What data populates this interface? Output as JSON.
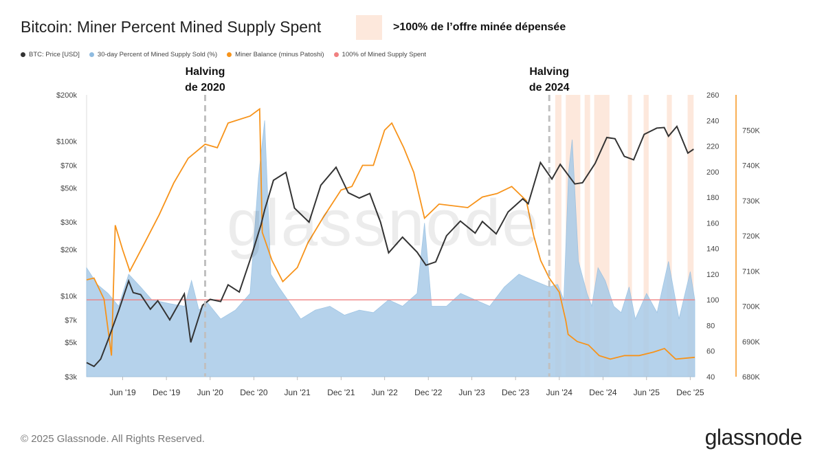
{
  "title": "Bitcoin: Miner Percent Mined Supply Spent",
  "shade_legend": {
    "label": ">100% de l’offre minée dépensée",
    "color": "#fde8dc"
  },
  "legend": [
    {
      "name": "BTC: Price [USD]",
      "color": "#333333"
    },
    {
      "name": "30-day Percent of Mined Supply Sold (%)",
      "color": "#8fbbe0"
    },
    {
      "name": "Miner Balance (minus Patoshi)",
      "color": "#f7931a"
    },
    {
      "name": "100% of Mined Supply Spent",
      "color": "#f08080"
    }
  ],
  "footer": "© 2025 Glassnode. All Rights Reserved.",
  "brand": "glassnode",
  "watermark": "glassnode",
  "colors": {
    "price": "#333333",
    "percent_fill": "#a9cbe8",
    "balance": "#f7931a",
    "threshold": "#f08080",
    "shade": "#fde8dc",
    "halving": "#c0c0c0"
  },
  "chart_data": {
    "type": "line",
    "title": "Bitcoin: Miner Percent Mined Supply Spent",
    "x_range": [
      "2019-01-01",
      "2025-12-20"
    ],
    "x_ticks": [
      {
        "date": "2019-06-01",
        "label": "Jun '19"
      },
      {
        "date": "2019-12-01",
        "label": "Dec '19"
      },
      {
        "date": "2020-06-01",
        "label": "Jun '20"
      },
      {
        "date": "2020-12-01",
        "label": "Dec '20"
      },
      {
        "date": "2021-06-01",
        "label": "Jun '21"
      },
      {
        "date": "2021-12-01",
        "label": "Dec '21"
      },
      {
        "date": "2022-06-01",
        "label": "Jun '22"
      },
      {
        "date": "2022-12-01",
        "label": "Dec '22"
      },
      {
        "date": "2023-06-01",
        "label": "Jun '23"
      },
      {
        "date": "2023-12-01",
        "label": "Dec '23"
      },
      {
        "date": "2024-06-01",
        "label": "Jun '24"
      },
      {
        "date": "2024-12-01",
        "label": "Dec '24"
      },
      {
        "date": "2025-06-01",
        "label": "Jun '25"
      },
      {
        "date": "2025-12-01",
        "label": "Dec '25"
      }
    ],
    "y_price": {
      "scale": "log",
      "range": [
        3000,
        200000
      ],
      "ticks": [
        {
          "value": 3000,
          "label": "$3k"
        },
        {
          "value": 5000,
          "label": "$5k"
        },
        {
          "value": 7000,
          "label": "$7k"
        },
        {
          "value": 10000,
          "label": "$10k"
        },
        {
          "value": 20000,
          "label": "$20k"
        },
        {
          "value": 30000,
          "label": "$30k"
        },
        {
          "value": 50000,
          "label": "$50k"
        },
        {
          "value": 70000,
          "label": "$70k"
        },
        {
          "value": 100000,
          "label": "$100k"
        },
        {
          "value": 200000,
          "label": "$200k"
        }
      ]
    },
    "y_percent": {
      "scale": "linear",
      "range": [
        40,
        260
      ],
      "ticks": [
        {
          "value": 40,
          "label": "40"
        },
        {
          "value": 60,
          "label": "60"
        },
        {
          "value": 80,
          "label": "80"
        },
        {
          "value": 100,
          "label": "100"
        },
        {
          "value": 120,
          "label": "120"
        },
        {
          "value": 140,
          "label": "140"
        },
        {
          "value": 160,
          "label": "160"
        },
        {
          "value": 180,
          "label": "180"
        },
        {
          "value": 200,
          "label": "200"
        },
        {
          "value": 220,
          "label": "220"
        },
        {
          "value": 240,
          "label": "240"
        },
        {
          "value": 260,
          "label": "260"
        }
      ]
    },
    "y_balance": {
      "scale": "linear",
      "range": [
        680000,
        760000
      ],
      "ticks": [
        {
          "value": 680000,
          "label": "680K"
        },
        {
          "value": 690000,
          "label": "690K"
        },
        {
          "value": 700000,
          "label": "700K"
        },
        {
          "value": 710000,
          "label": "710K"
        },
        {
          "value": 720000,
          "label": "720K"
        },
        {
          "value": 730000,
          "label": "730K"
        },
        {
          "value": 740000,
          "label": "740K"
        },
        {
          "value": 750000,
          "label": "750K"
        }
      ]
    },
    "threshold": 100,
    "halvings": [
      {
        "date": "2020-05-11",
        "label_line1": "Halving",
        "label_line2": "de 2020"
      },
      {
        "date": "2024-04-20",
        "label_line1": "Halving",
        "label_line2": "de 2024"
      }
    ],
    "shaded_periods": [
      [
        "2024-05-15",
        "2024-06-10"
      ],
      [
        "2024-06-28",
        "2024-08-28"
      ],
      [
        "2024-09-15",
        "2024-10-08"
      ],
      [
        "2024-10-25",
        "2024-12-28"
      ],
      [
        "2025-03-15",
        "2025-04-01"
      ],
      [
        "2025-05-20",
        "2025-06-10"
      ],
      [
        "2025-08-25",
        "2025-09-15"
      ],
      [
        "2025-11-20",
        "2025-12-15"
      ]
    ],
    "series": [
      {
        "name": "BTC: Price [USD]",
        "axis": "price",
        "points": [
          [
            "2019-01-01",
            3700
          ],
          [
            "2019-02-01",
            3500
          ],
          [
            "2019-03-01",
            3900
          ],
          [
            "2019-04-01",
            5200
          ],
          [
            "2019-05-15",
            8000
          ],
          [
            "2019-06-26",
            12500
          ],
          [
            "2019-07-15",
            10500
          ],
          [
            "2019-08-15",
            10200
          ],
          [
            "2019-09-25",
            8200
          ],
          [
            "2019-10-26",
            9300
          ],
          [
            "2019-12-15",
            7000
          ],
          [
            "2020-02-14",
            10300
          ],
          [
            "2020-03-12",
            5000
          ],
          [
            "2020-04-30",
            8700
          ],
          [
            "2020-06-01",
            9500
          ],
          [
            "2020-07-15",
            9200
          ],
          [
            "2020-08-15",
            11800
          ],
          [
            "2020-10-01",
            10600
          ],
          [
            "2020-11-20",
            18000
          ],
          [
            "2020-12-31",
            29000
          ],
          [
            "2021-01-15",
            36000
          ],
          [
            "2021-02-21",
            56000
          ],
          [
            "2021-04-14",
            63000
          ],
          [
            "2021-05-20",
            37000
          ],
          [
            "2021-07-20",
            30000
          ],
          [
            "2021-09-07",
            52000
          ],
          [
            "2021-11-10",
            68000
          ],
          [
            "2021-12-31",
            46500
          ],
          [
            "2022-02-15",
            43000
          ],
          [
            "2022-03-31",
            46000
          ],
          [
            "2022-05-15",
            30000
          ],
          [
            "2022-06-18",
            19000
          ],
          [
            "2022-08-15",
            24000
          ],
          [
            "2022-10-15",
            19200
          ],
          [
            "2022-11-21",
            15800
          ],
          [
            "2023-01-01",
            16600
          ],
          [
            "2023-02-15",
            24500
          ],
          [
            "2023-04-14",
            30500
          ],
          [
            "2023-06-15",
            25500
          ],
          [
            "2023-07-15",
            30300
          ],
          [
            "2023-09-11",
            25200
          ],
          [
            "2023-10-31",
            35000
          ],
          [
            "2023-12-31",
            42500
          ],
          [
            "2024-01-23",
            39500
          ],
          [
            "2024-03-14",
            73000
          ],
          [
            "2024-05-01",
            57000
          ],
          [
            "2024-06-05",
            71000
          ],
          [
            "2024-08-05",
            53000
          ],
          [
            "2024-09-06",
            54000
          ],
          [
            "2024-10-29",
            72000
          ],
          [
            "2024-12-17",
            106000
          ],
          [
            "2025-01-20",
            104000
          ],
          [
            "2025-02-28",
            80000
          ],
          [
            "2025-04-08",
            76000
          ],
          [
            "2025-05-22",
            111000
          ],
          [
            "2025-07-14",
            122000
          ],
          [
            "2025-08-14",
            123000
          ],
          [
            "2025-09-01",
            108000
          ],
          [
            "2025-10-06",
            125000
          ],
          [
            "2025-11-21",
            84000
          ],
          [
            "2025-12-15",
            89000
          ]
        ]
      },
      {
        "name": "30-day Percent of Mined Supply Sold (%)",
        "axis": "percent",
        "points": [
          [
            "2019-01-01",
            125
          ],
          [
            "2019-02-15",
            112
          ],
          [
            "2019-04-01",
            105
          ],
          [
            "2019-05-15",
            95
          ],
          [
            "2019-06-26",
            120
          ],
          [
            "2019-08-15",
            110
          ],
          [
            "2019-10-01",
            100
          ],
          [
            "2019-12-15",
            97
          ],
          [
            "2020-02-15",
            95
          ],
          [
            "2020-03-15",
            115
          ],
          [
            "2020-04-15",
            92
          ],
          [
            "2020-05-20",
            98
          ],
          [
            "2020-07-15",
            85
          ],
          [
            "2020-09-15",
            92
          ],
          [
            "2020-11-15",
            105
          ],
          [
            "2020-12-20",
            195
          ],
          [
            "2021-01-15",
            240
          ],
          [
            "2021-02-10",
            120
          ],
          [
            "2021-03-15",
            110
          ],
          [
            "2021-05-10",
            95
          ],
          [
            "2021-06-15",
            85
          ],
          [
            "2021-08-15",
            92
          ],
          [
            "2021-10-15",
            95
          ],
          [
            "2021-12-15",
            88
          ],
          [
            "2022-02-15",
            92
          ],
          [
            "2022-04-15",
            90
          ],
          [
            "2022-06-18",
            100
          ],
          [
            "2022-08-15",
            95
          ],
          [
            "2022-10-15",
            105
          ],
          [
            "2022-11-15",
            160
          ],
          [
            "2022-12-15",
            95
          ],
          [
            "2023-02-15",
            95
          ],
          [
            "2023-04-15",
            105
          ],
          [
            "2023-06-15",
            100
          ],
          [
            "2023-08-15",
            95
          ],
          [
            "2023-10-15",
            110
          ],
          [
            "2023-12-15",
            120
          ],
          [
            "2024-02-15",
            115
          ],
          [
            "2024-04-20",
            110
          ],
          [
            "2024-05-25",
            112
          ],
          [
            "2024-06-20",
            100
          ],
          [
            "2024-07-10",
            200
          ],
          [
            "2024-07-25",
            225
          ],
          [
            "2024-08-20",
            130
          ],
          [
            "2024-09-25",
            105
          ],
          [
            "2024-10-15",
            95
          ],
          [
            "2024-11-10",
            125
          ],
          [
            "2024-12-10",
            115
          ],
          [
            "2025-01-15",
            95
          ],
          [
            "2025-02-15",
            90
          ],
          [
            "2025-03-20",
            110
          ],
          [
            "2025-04-15",
            85
          ],
          [
            "2025-06-01",
            105
          ],
          [
            "2025-07-15",
            90
          ],
          [
            "2025-09-01",
            130
          ],
          [
            "2025-10-15",
            85
          ],
          [
            "2025-12-01",
            122
          ],
          [
            "2025-12-20",
            100
          ]
        ]
      },
      {
        "name": "Miner Balance (minus Patoshi)",
        "axis": "balance",
        "points": [
          [
            "2019-01-01",
            707500
          ],
          [
            "2019-02-01",
            708000
          ],
          [
            "2019-03-15",
            702000
          ],
          [
            "2019-04-15",
            686000
          ],
          [
            "2019-05-01",
            723000
          ],
          [
            "2019-06-01",
            716000
          ],
          [
            "2019-07-01",
            710000
          ],
          [
            "2019-09-01",
            718000
          ],
          [
            "2019-11-01",
            726000
          ],
          [
            "2020-01-01",
            735000
          ],
          [
            "2020-03-01",
            742000
          ],
          [
            "2020-05-11",
            746000
          ],
          [
            "2020-07-01",
            745000
          ],
          [
            "2020-08-15",
            752000
          ],
          [
            "2020-11-15",
            754000
          ],
          [
            "2020-12-25",
            756000
          ],
          [
            "2021-01-05",
            721000
          ],
          [
            "2021-02-15",
            713000
          ],
          [
            "2021-04-01",
            707000
          ],
          [
            "2021-06-01",
            711000
          ],
          [
            "2021-07-15",
            718000
          ],
          [
            "2021-09-15",
            725000
          ],
          [
            "2021-12-01",
            733000
          ],
          [
            "2022-01-15",
            734000
          ],
          [
            "2022-03-01",
            740000
          ],
          [
            "2022-04-15",
            740000
          ],
          [
            "2022-06-01",
            750000
          ],
          [
            "2022-07-01",
            752000
          ],
          [
            "2022-08-20",
            745000
          ],
          [
            "2022-10-01",
            738000
          ],
          [
            "2022-11-15",
            725000
          ],
          [
            "2023-01-15",
            729000
          ],
          [
            "2023-05-15",
            728000
          ],
          [
            "2023-07-15",
            731000
          ],
          [
            "2023-09-15",
            732000
          ],
          [
            "2023-11-15",
            734000
          ],
          [
            "2024-01-15",
            730000
          ],
          [
            "2024-02-15",
            720000
          ],
          [
            "2024-03-15",
            713000
          ],
          [
            "2024-04-20",
            708000
          ],
          [
            "2024-06-01",
            704000
          ],
          [
            "2024-06-28",
            696000
          ],
          [
            "2024-07-08",
            692000
          ],
          [
            "2024-08-15",
            690000
          ],
          [
            "2024-10-01",
            689000
          ],
          [
            "2024-11-15",
            686000
          ],
          [
            "2025-01-01",
            685000
          ],
          [
            "2025-03-01",
            686000
          ],
          [
            "2025-05-01",
            686000
          ],
          [
            "2025-07-01",
            687000
          ],
          [
            "2025-08-15",
            688000
          ],
          [
            "2025-10-01",
            685000
          ],
          [
            "2025-12-20",
            685500
          ]
        ]
      }
    ]
  }
}
